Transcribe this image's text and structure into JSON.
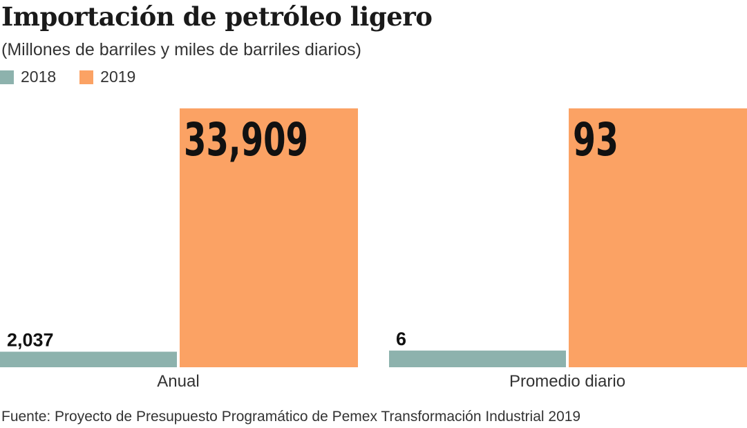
{
  "chart_data": {
    "type": "bar",
    "title": "Importación de petróleo ligero",
    "subtitle": "(Millones de barriles y miles de barriles diarios)",
    "categories": [
      "Anual",
      "Promedio diario"
    ],
    "series": [
      {
        "name": "2018",
        "color": "#8db2ad",
        "values": [
          2037,
          6
        ],
        "labels": [
          "2,037",
          "6"
        ]
      },
      {
        "name": "2019",
        "color": "#fba264",
        "values": [
          33909,
          93
        ],
        "labels": [
          "33,909",
          "93"
        ]
      }
    ],
    "independent_scale_per_category": true,
    "grid": false,
    "legend_position": "top-left",
    "source": "Fuente: Proyecto de Presupuesto Programático de Pemex Transformación Industrial 2019"
  }
}
